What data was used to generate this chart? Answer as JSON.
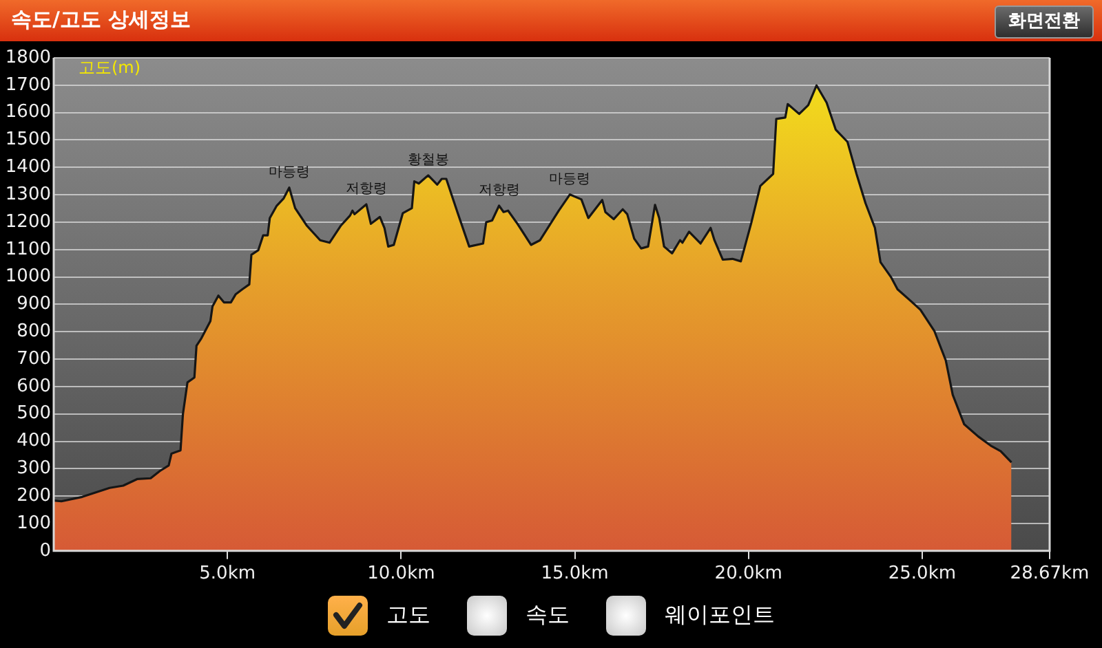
{
  "chart_data": {
    "type": "area",
    "title": "속도/고도 상세정보",
    "ylabel": "고도(m)",
    "x": [
      0,
      0.22,
      0.82,
      1.61,
      2.0,
      2.4,
      2.79,
      3.06,
      3.31,
      3.39,
      3.65,
      3.72,
      3.85,
      4.05,
      4.11,
      4.25,
      4.51,
      4.57,
      4.74,
      4.9,
      5.1,
      5.24,
      5.43,
      5.63,
      5.69,
      5.89,
      6.03,
      6.16,
      6.22,
      6.42,
      6.62,
      6.78,
      6.95,
      7.28,
      7.67,
      7.94,
      8.27,
      8.53,
      8.6,
      8.66,
      9.0,
      9.13,
      9.39,
      9.52,
      9.63,
      9.79,
      10.05,
      10.31,
      10.38,
      10.51,
      10.78,
      11.04,
      11.17,
      11.3,
      11.63,
      11.96,
      12.36,
      12.45,
      12.62,
      12.82,
      12.95,
      13.08,
      13.35,
      13.74,
      14.0,
      14.27,
      14.54,
      14.86,
      15.19,
      15.39,
      15.79,
      15.88,
      16.12,
      16.38,
      16.51,
      16.71,
      16.91,
      17.11,
      17.31,
      17.43,
      17.57,
      17.8,
      18.03,
      18.1,
      18.29,
      18.62,
      18.91,
      19.02,
      19.26,
      19.54,
      19.78,
      20.08,
      20.34,
      20.71,
      20.8,
      21.06,
      21.13,
      21.46,
      21.72,
      21.96,
      22.25,
      22.51,
      22.85,
      23.11,
      23.37,
      23.64,
      23.8,
      24.1,
      24.29,
      24.69,
      24.95,
      25.35,
      25.68,
      25.88,
      26.21,
      26.61,
      27.0,
      27.26,
      27.57
    ],
    "series": [
      {
        "name": "고도",
        "color": "#e6a02a",
        "values": [
          184,
          181,
          197,
          230,
          238,
          262,
          265,
          292,
          312,
          355,
          367,
          500,
          615,
          633,
          749,
          776,
          839,
          892,
          932,
          907,
          907,
          937,
          955,
          973,
          1081,
          1098,
          1152,
          1152,
          1215,
          1260,
          1287,
          1326,
          1251,
          1188,
          1134,
          1125,
          1188,
          1224,
          1242,
          1229,
          1265,
          1194,
          1219,
          1179,
          1111,
          1117,
          1233,
          1251,
          1349,
          1341,
          1371,
          1337,
          1358,
          1358,
          1233,
          1111,
          1122,
          1200,
          1206,
          1260,
          1237,
          1242,
          1194,
          1117,
          1134,
          1188,
          1242,
          1301,
          1283,
          1215,
          1281,
          1237,
          1211,
          1247,
          1229,
          1140,
          1104,
          1111,
          1263,
          1215,
          1111,
          1086,
          1134,
          1125,
          1165,
          1122,
          1179,
          1134,
          1063,
          1066,
          1057,
          1197,
          1332,
          1376,
          1577,
          1582,
          1631,
          1595,
          1627,
          1699,
          1636,
          1538,
          1493,
          1376,
          1269,
          1179,
          1054,
          1000,
          955,
          910,
          880,
          803,
          695,
          570,
          462,
          418,
          382,
          364,
          323
        ]
      }
    ],
    "xlim": [
      0,
      28.67
    ],
    "xticks": [
      {
        "value": 5,
        "label": "5.0km"
      },
      {
        "value": 10,
        "label": "10.0km"
      },
      {
        "value": 15,
        "label": "15.0km"
      },
      {
        "value": 20,
        "label": "20.0km"
      },
      {
        "value": 25,
        "label": "25.0km"
      },
      {
        "value": 28.67,
        "label": "28.67km"
      }
    ],
    "ylim": [
      0,
      1800
    ],
    "yticks": [
      0,
      100,
      200,
      300,
      400,
      500,
      600,
      700,
      800,
      900,
      1000,
      1100,
      1200,
      1300,
      1400,
      1500,
      1600,
      1700,
      1800
    ],
    "grid": "y",
    "legend": "bottom",
    "marker": "none",
    "line_style": "solid",
    "annotations": [
      {
        "text": "마등령",
        "x": 6.78,
        "y": 1326
      },
      {
        "text": "저항령",
        "x": 9.0,
        "y": 1265
      },
      {
        "text": "황철봉",
        "x": 10.78,
        "y": 1371
      },
      {
        "text": "저항령",
        "x": 12.82,
        "y": 1260
      },
      {
        "text": "마등령",
        "x": 14.86,
        "y": 1301
      },
      "화면전환",
      "속도",
      "웨이포인트"
    ]
  }
}
